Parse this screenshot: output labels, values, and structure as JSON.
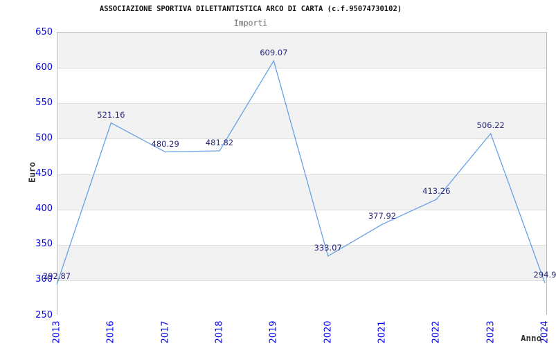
{
  "title": "ASSOCIAZIONE SPORTIVA DILETTANTISTICA ARCO DI CARTA (c.f.95074730102)",
  "subtitle": "Importi",
  "chart_data": {
    "type": "line",
    "title": "ASSOCIAZIONE SPORTIVA DILETTANTISTICA ARCO DI CARTA (c.f.95074730102)",
    "subtitle": "Importi",
    "xlabel": "Anno",
    "ylabel": "Euro",
    "categories": [
      "2013",
      "2016",
      "2017",
      "2018",
      "2019",
      "2020",
      "2021",
      "2022",
      "2023",
      "2024"
    ],
    "series": [
      {
        "name": "Importi",
        "values": [
          292.87,
          521.16,
          480.29,
          481.82,
          609.07,
          333.07,
          377.92,
          413.26,
          506.22,
          294.9
        ],
        "point_labels": [
          "292.87",
          "521.16",
          "480.29",
          "481.82",
          "609.07",
          "333.07",
          "377.92",
          "413.26",
          "506.22",
          "294.9"
        ]
      }
    ],
    "ylim": [
      250,
      650
    ],
    "ytick_step": 50,
    "y_tick_labels": [
      "650",
      "600",
      "550",
      "500",
      "450",
      "400",
      "350",
      "300",
      "250"
    ],
    "grid": true,
    "legend": false,
    "markers": false,
    "band_fill": "alternating-horizontal"
  },
  "colors": {
    "line": "#66a0e6",
    "tick_text": "#0000ee",
    "point_label_text": "#28287d",
    "band_gray": "#f2f2f2",
    "band_white": "#ffffff",
    "gridline": "#dedede",
    "plot_border": "#b7b7b7",
    "title_text": "#111111",
    "subtitle_text": "#666666",
    "axis_title_text": "#333333"
  }
}
